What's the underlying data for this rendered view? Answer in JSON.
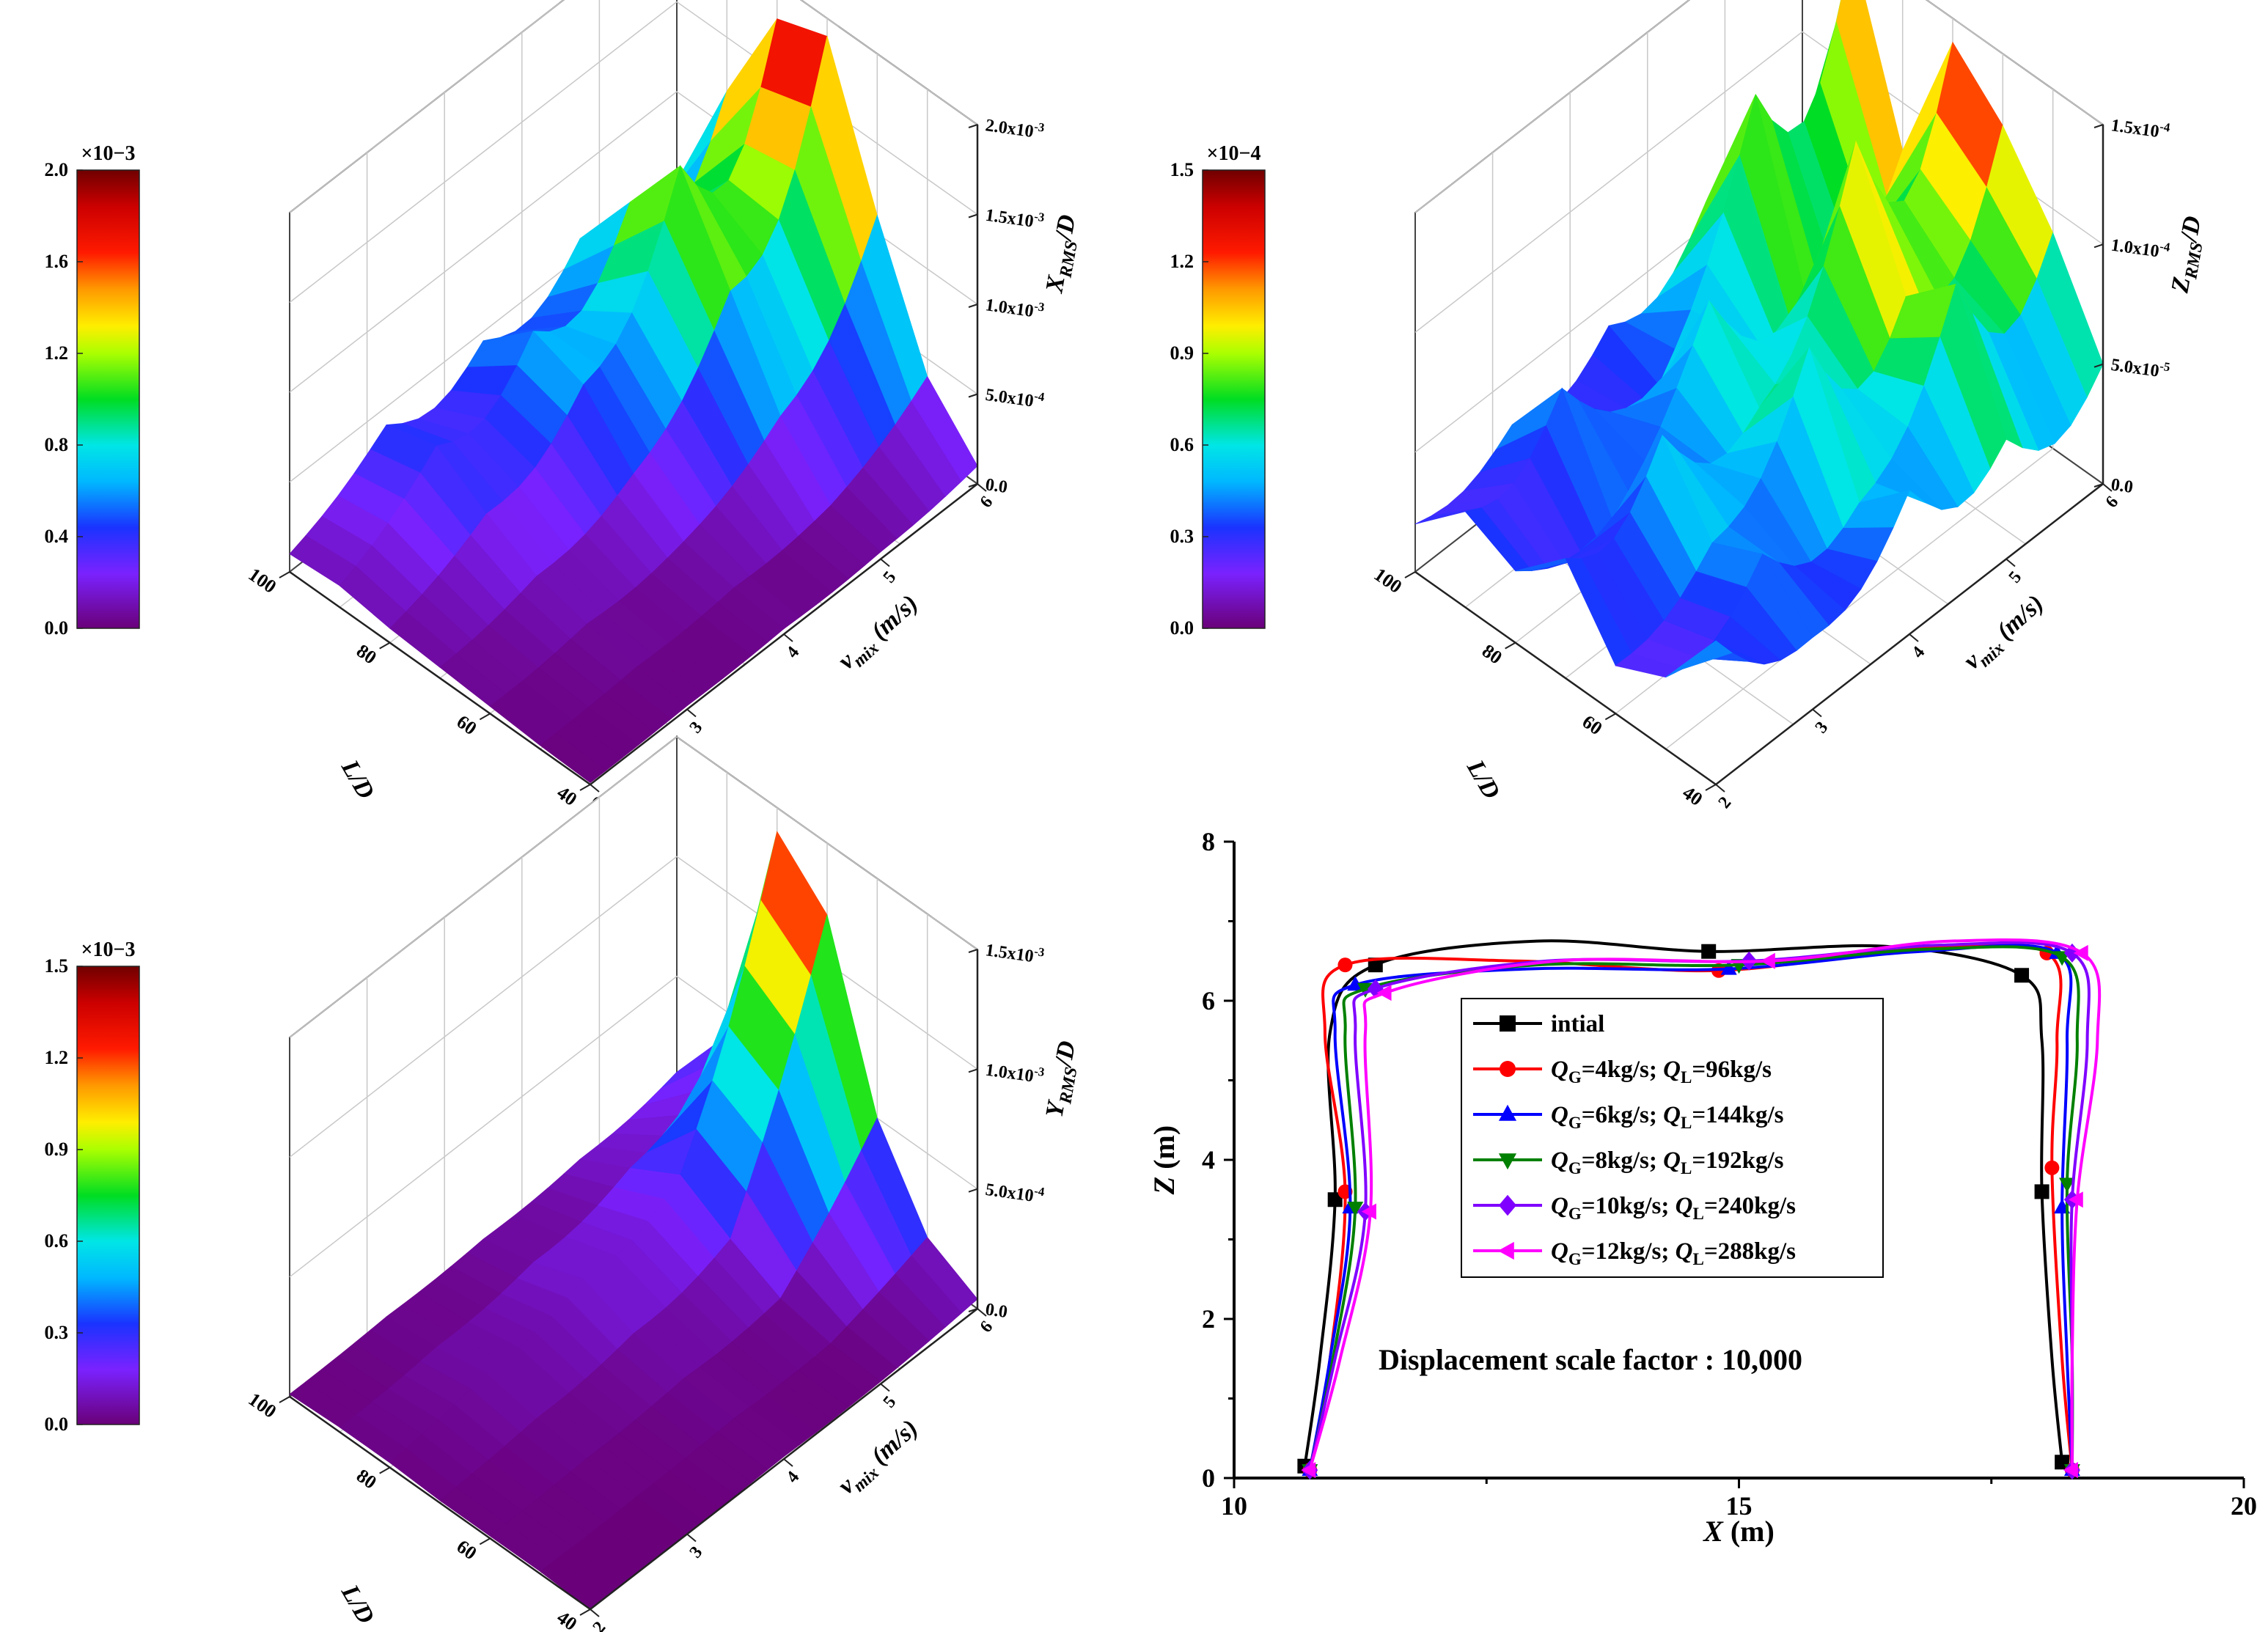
{
  "chart_data": [
    {
      "type": "surface3d",
      "title": "",
      "xlabel": "L/D",
      "ylabel": "v mix (m/s)",
      "zlabel": "XRMS/D",
      "zlabel_main": "X",
      "zlabel_sub": "RMS",
      "zlabel_tail": "/D",
      "ylabel_main": "v",
      "ylabel_sub": "mix",
      "ylabel_tail": " (m/s)",
      "x_ticks": [
        "100",
        "80",
        "60",
        "40"
      ],
      "y_ticks": [
        "2",
        "3",
        "4",
        "5",
        "6"
      ],
      "z_ticks": [
        "0.0",
        "5.0x10-4",
        "1.0x10-3",
        "1.5x10-3",
        "2.0x10-3"
      ],
      "zlim": [
        0,
        0.002
      ],
      "colorbar": {
        "exponent": "×10−3",
        "ticks": [
          "0.0",
          "0.4",
          "0.8",
          "1.2",
          "1.6",
          "2.0"
        ],
        "range": [
          0,
          2.0
        ]
      },
      "v_mix": [
        2,
        3,
        4,
        5,
        6
      ],
      "L_over_D": [
        100,
        90,
        80,
        70,
        60,
        50,
        40
      ],
      "values": [
        [
          0.0001,
          0.00012,
          8e-05,
          6e-05,
          4e-05,
          2e-05,
          1e-05
        ],
        [
          0.0004,
          0.00048,
          0.0003,
          0.00015,
          8e-05,
          4e-05,
          2e-05
        ],
        [
          0.00045,
          0.0007,
          0.0006,
          0.0003,
          0.00012,
          6e-05,
          3e-05
        ],
        [
          0.0006,
          0.001,
          0.0014,
          0.0009,
          0.0004,
          0.0001,
          4e-05
        ],
        [
          0.0005,
          0.0012,
          0.0018,
          0.0019,
          0.0011,
          0.0004,
          0.0001
        ]
      ]
    },
    {
      "type": "surface3d",
      "title": "",
      "xlabel": "L/D",
      "ylabel": "v mix (m/s)",
      "zlabel": "ZRMS/D",
      "zlabel_main": "Z",
      "zlabel_sub": "RMS",
      "zlabel_tail": "/D",
      "ylabel_main": "v",
      "ylabel_sub": "mix",
      "ylabel_tail": " (m/s)",
      "x_ticks": [
        "100",
        "80",
        "60",
        "40"
      ],
      "y_ticks": [
        "2",
        "3",
        "4",
        "5",
        "6"
      ],
      "z_ticks": [
        "0.0",
        "5.0x10-5",
        "1.0x10-4",
        "1.5x10-4"
      ],
      "zlim": [
        0,
        0.00015
      ],
      "colorbar": {
        "exponent": "×10−4",
        "ticks": [
          "0.0",
          "0.3",
          "0.6",
          "0.9",
          "1.2",
          "1.5"
        ],
        "range": [
          0,
          1.5
        ]
      },
      "v_mix": [
        2,
        3,
        4,
        5,
        6
      ],
      "L_over_D": [
        100,
        90,
        80,
        70,
        60,
        50,
        40
      ],
      "values": [
        [
          2e-05,
          4e-05,
          3e-05,
          5e-05,
          2e-05,
          3e-05,
          6e-05
        ],
        [
          3e-05,
          6e-05,
          2e-05,
          7e-05,
          4e-05,
          5e-05,
          3e-05
        ],
        [
          4e-05,
          3e-05,
          8e-05,
          5e-05,
          9e-05,
          4e-05,
          6e-05
        ],
        [
          6e-05,
          0.00012,
          5e-05,
          0.00013,
          8e-05,
          0.0001,
          5e-05
        ],
        [
          4e-05,
          0.00015,
          8e-05,
          0.00014,
          0.00012,
          9e-05,
          5e-05
        ]
      ]
    },
    {
      "type": "surface3d",
      "title": "",
      "xlabel": "L/D",
      "ylabel": "v mix (m/s)",
      "zlabel": "YRMS/D",
      "zlabel_main": "Y",
      "zlabel_sub": "RMS",
      "zlabel_tail": "/D",
      "ylabel_main": "v",
      "ylabel_sub": "mix",
      "ylabel_tail": " (m/s)",
      "x_ticks": [
        "100",
        "80",
        "60",
        "40"
      ],
      "y_ticks": [
        "2",
        "3",
        "4",
        "5",
        "6"
      ],
      "z_ticks": [
        "0.0",
        "5.0x10-4",
        "1.0x10-3",
        "1.5x10-3"
      ],
      "zlim": [
        0,
        0.0015
      ],
      "colorbar": {
        "exponent": "×10−3",
        "ticks": [
          "0.0",
          "0.3",
          "0.6",
          "0.9",
          "1.2",
          "1.5"
        ],
        "range": [
          0,
          1.5
        ]
      },
      "v_mix": [
        2,
        3,
        4,
        5,
        6
      ],
      "L_over_D": [
        100,
        90,
        80,
        70,
        60,
        50,
        40
      ],
      "values": [
        [
          1e-05,
          2e-05,
          2e-05,
          1e-05,
          1e-05,
          1e-05,
          0.0
        ],
        [
          2e-05,
          4e-05,
          8e-05,
          4e-05,
          2e-05,
          1e-05,
          0.0
        ],
        [
          3e-05,
          8e-05,
          0.00016,
          8e-05,
          4e-05,
          2e-05,
          1e-05
        ],
        [
          5e-05,
          0.00016,
          0.00028,
          0.00016,
          6e-05,
          2e-05,
          1e-05
        ],
        [
          0.0001,
          0.0004,
          0.0014,
          0.0012,
          0.0005,
          0.00015,
          4e-05
        ]
      ]
    },
    {
      "type": "line",
      "title": "",
      "xlabel": "X (m)",
      "ylabel": "Z (m)",
      "xlabel_var": "X",
      "xlabel_unit": " (m)",
      "ylabel_var": "Z",
      "ylabel_unit": " (m)",
      "xlim": [
        10,
        20
      ],
      "ylim": [
        0,
        8
      ],
      "x_ticks": [
        10,
        15,
        20
      ],
      "y_ticks": [
        0,
        2,
        4,
        6,
        8
      ],
      "annotation": "Displacement scale factor : 10,000",
      "series": [
        {
          "name": "intial",
          "color": "#000000",
          "marker": "square",
          "x": [
            10.7,
            10.85,
            11.0,
            10.95,
            11.4,
            13.0,
            14.7,
            16.5,
            17.8,
            18.0,
            18.0,
            18.1,
            18.2
          ],
          "y": [
            0.15,
            1.5,
            3.5,
            5.6,
            6.45,
            6.75,
            6.62,
            6.68,
            6.32,
            5.5,
            3.6,
            1.5,
            0.2
          ]
        },
        {
          "name": "QG=4kg/s; QL=96kg/s",
          "color": "#ff0000",
          "marker": "circle",
          "x": [
            10.75,
            10.95,
            11.1,
            10.9,
            11.1,
            12.8,
            14.8,
            16.7,
            18.05,
            18.15,
            18.1,
            18.2,
            18.3
          ],
          "y": [
            0.1,
            1.5,
            3.6,
            5.6,
            6.45,
            6.5,
            6.38,
            6.65,
            6.6,
            5.5,
            3.9,
            1.5,
            0.1
          ]
        },
        {
          "name": "QG=6kg/s; QL=144kg/s",
          "color": "#0000ff",
          "marker": "triangle-up",
          "x": [
            10.75,
            10.95,
            11.15,
            11.0,
            11.2,
            12.9,
            14.9,
            16.8,
            18.15,
            18.25,
            18.2,
            18.25,
            18.3
          ],
          "y": [
            0.1,
            1.5,
            3.4,
            5.6,
            6.2,
            6.4,
            6.4,
            6.62,
            6.6,
            5.5,
            3.4,
            1.5,
            0.1
          ]
        },
        {
          "name": "QG=8kg/s; QL=192kg/s",
          "color": "#008000",
          "marker": "triangle-down",
          "x": [
            10.75,
            10.98,
            11.2,
            11.1,
            11.3,
            13.0,
            15.0,
            16.9,
            18.2,
            18.35,
            18.25,
            18.3,
            18.3
          ],
          "y": [
            0.1,
            1.5,
            3.4,
            5.6,
            6.15,
            6.45,
            6.45,
            6.65,
            6.55,
            5.5,
            3.7,
            1.5,
            0.1
          ]
        },
        {
          "name": "QG=10kg/s; QL=240kg/s",
          "color": "#8000ff",
          "marker": "diamond",
          "x": [
            10.75,
            11.0,
            11.3,
            11.2,
            11.4,
            13.1,
            15.1,
            17.0,
            18.3,
            18.45,
            18.3,
            18.3,
            18.3
          ],
          "y": [
            0.1,
            1.5,
            3.35,
            5.6,
            6.15,
            6.5,
            6.5,
            6.7,
            6.6,
            5.5,
            3.5,
            1.5,
            0.1
          ]
        },
        {
          "name": "QG=12kg/s; QL=288kg/s",
          "color": "#ff00ff",
          "marker": "triangle-left",
          "x": [
            10.75,
            11.05,
            11.35,
            11.3,
            11.5,
            13.2,
            15.3,
            17.1,
            18.4,
            18.55,
            18.35,
            18.3,
            18.3
          ],
          "y": [
            0.1,
            1.5,
            3.35,
            5.6,
            6.1,
            6.5,
            6.5,
            6.75,
            6.6,
            5.5,
            3.5,
            1.5,
            0.1
          ]
        }
      ],
      "legend": {
        "position": "top-center",
        "entries": [
          {
            "text": "intial"
          },
          {
            "q1": "Q",
            "s1": "G",
            "v1": "=4kg/s; ",
            "q2": "Q",
            "s2": "L",
            "v2": "=96kg/s"
          },
          {
            "q1": "Q",
            "s1": "G",
            "v1": "=6kg/s; ",
            "q2": "Q",
            "s2": "L",
            "v2": "=144kg/s"
          },
          {
            "q1": "Q",
            "s1": "G",
            "v1": "=8kg/s; ",
            "q2": "Q",
            "s2": "L",
            "v2": "=192kg/s"
          },
          {
            "q1": "Q",
            "s1": "G",
            "v1": "=10kg/s; ",
            "q2": "Q",
            "s2": "L",
            "v2": "=240kg/s"
          },
          {
            "q1": "Q",
            "s1": "G",
            "v1": "=12kg/s; ",
            "q2": "Q",
            "s2": "L",
            "v2": "=288kg/s"
          }
        ]
      }
    }
  ]
}
